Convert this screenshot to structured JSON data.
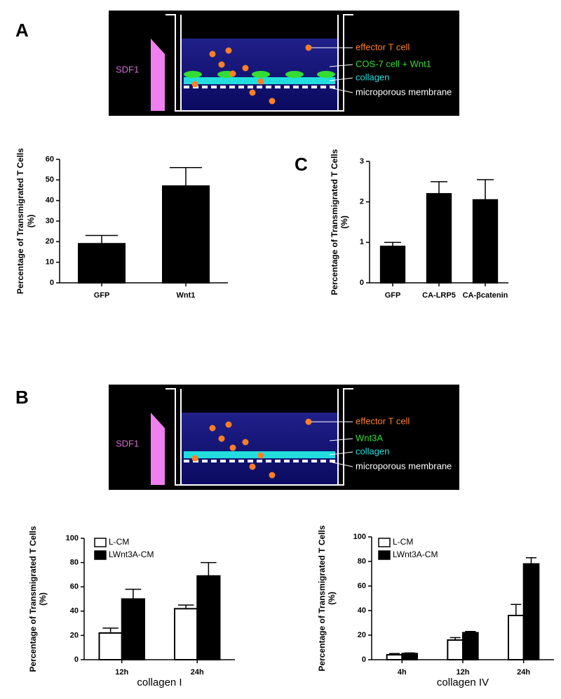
{
  "panel_labels": [
    "A",
    "C",
    "B"
  ],
  "diagrams": [
    {
      "gradient_label": "SDF1",
      "labels": [
        {
          "text": "effector T cell",
          "color": "#ff7f27"
        },
        {
          "text": "COS-7 cell + Wnt1",
          "color": "#33dd33"
        },
        {
          "text": "collagen",
          "color": "#22dddd"
        },
        {
          "text": "microporous membrane",
          "color": "#ffffff"
        }
      ]
    },
    {
      "gradient_label": "SDF1",
      "labels": [
        {
          "text": "effector T cell",
          "color": "#ff7f27"
        },
        {
          "text": "Wnt3A",
          "color": "#33dd33"
        },
        {
          "text": "collagen",
          "color": "#22dddd"
        },
        {
          "text": "microporous membrane",
          "color": "#ffffff"
        }
      ]
    }
  ],
  "chart_data": [
    {
      "type": "bar",
      "ylabel": [
        "Percentage of Transmigrated T Cells",
        "(%)"
      ],
      "categories": [
        "GFP",
        "Wnt1"
      ],
      "series": [
        {
          "color": "#000000",
          "values": [
            19,
            47
          ],
          "errors": [
            4,
            9
          ]
        }
      ],
      "ylim": [
        0,
        60
      ],
      "yticks": [
        0,
        10,
        20,
        30,
        40,
        50,
        60
      ]
    },
    {
      "type": "bar",
      "ylabel": [
        "Percentage of Transmigrated T Cells",
        "(%)"
      ],
      "categories": [
        "GFP",
        "CA-LRP5",
        "CA-βcatenin"
      ],
      "series": [
        {
          "color": "#000000",
          "values": [
            0.9,
            2.2,
            2.05
          ],
          "errors": [
            0.1,
            0.3,
            0.5
          ]
        }
      ],
      "ylim": [
        0,
        3
      ],
      "yticks": [
        0,
        1,
        2,
        3
      ]
    },
    {
      "type": "bar",
      "ylabel": [
        "Percentage of Transmigrated T Cells",
        "(%)"
      ],
      "xlabel": "collagen I",
      "categories": [
        "12h",
        "24h"
      ],
      "series": [
        {
          "name": "L-CM",
          "color": "#ffffff",
          "values": [
            22,
            42
          ],
          "errors": [
            4,
            3
          ]
        },
        {
          "name": "LWnt3A-CM",
          "color": "#000000",
          "values": [
            50,
            69
          ],
          "errors": [
            8,
            11
          ]
        }
      ],
      "ylim": [
        0,
        100
      ],
      "yticks": [
        0,
        20,
        40,
        60,
        80,
        100
      ],
      "legend": "upper left"
    },
    {
      "type": "bar",
      "ylabel": [
        "Percentage of Transmigrated T Cells",
        "(%)"
      ],
      "xlabel": "collagen IV",
      "categories": [
        "4h",
        "12h",
        "24h"
      ],
      "series": [
        {
          "name": "L-CM",
          "color": "#ffffff",
          "values": [
            4,
            16,
            36
          ],
          "errors": [
            1,
            2,
            9
          ]
        },
        {
          "name": "LWnt3A-CM",
          "color": "#000000",
          "values": [
            5,
            22,
            78
          ],
          "errors": [
            0.5,
            1,
            5
          ]
        }
      ],
      "ylim": [
        0,
        100
      ],
      "yticks": [
        0,
        20,
        40,
        60,
        80,
        100
      ],
      "legend": "upper left"
    }
  ]
}
